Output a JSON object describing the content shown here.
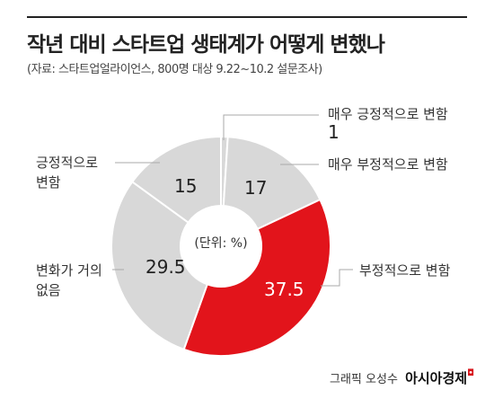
{
  "header": {
    "title": "작년 대비 스타트업 생태계가 어떻게 변했나",
    "subtitle": "(자료: 스타트업얼라이언스, 800명 대상 9.22~10.2 설문조사)"
  },
  "center_note": "(단위: %)",
  "credit": {
    "prefix": "그래픽 오성수",
    "brand": "아시아경제"
  },
  "colors": {
    "highlight": "#e2141b",
    "muted": "#d8d8d8",
    "line": "#aaaaaa"
  },
  "chart_data": {
    "type": "pie",
    "variant": "donut",
    "title": "작년 대비 스타트업 생태계가 어떻게 변했나",
    "unit": "%",
    "slices": [
      {
        "label": "매우 긍정적으로 변함",
        "value": 1,
        "value_label": "1"
      },
      {
        "label": "매우 부정적으로 변함",
        "value": 17,
        "value_label": "17"
      },
      {
        "label": "부정적으로 변함",
        "value": 37.5,
        "value_label": "37.5",
        "highlight": true
      },
      {
        "label": "변화가 거의 없음",
        "value": 29.5,
        "value_label": "29.5"
      },
      {
        "label": "긍정적으로 변함",
        "value": 15,
        "value_label": "15"
      }
    ]
  }
}
